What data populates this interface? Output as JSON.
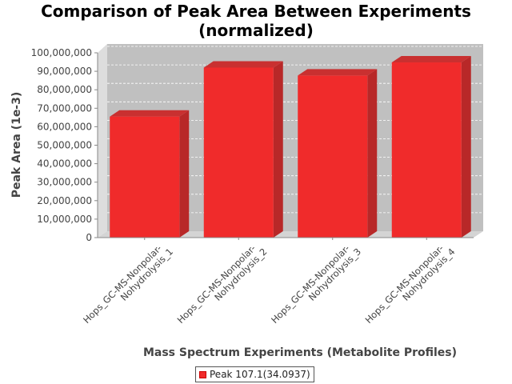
{
  "chart_data": {
    "type": "bar",
    "title_lines": [
      "Comparison of Peak Area Between Experiments",
      "(normalized)"
    ],
    "xlabel": "Mass Spectrum Experiments (Metabolite Profiles)",
    "ylabel": "Peak Area (1e-3)",
    "categories": [
      [
        "Hops_GC-MS-Nonpolar-",
        "Nohydrolysis_1"
      ],
      [
        "Hops_GC-MS-Nonpolar-",
        "Nohydrolysis_2"
      ],
      [
        "Hops_GC-MS-Nonpolar-",
        "Nohydrolysis_3"
      ],
      [
        "Hops_GC-MS-Nonpolar-",
        "Nohydrolysis_4"
      ]
    ],
    "series": [
      {
        "name": "Peak 107.1(34.0937)",
        "values": [
          65500000,
          92000000,
          87700000,
          94800000
        ],
        "color": "#f02b2b"
      }
    ],
    "ylim": [
      0,
      100000000
    ],
    "yticks": [
      {
        "value": 0,
        "label": "0"
      },
      {
        "value": 10000000,
        "label": "10,000,000"
      },
      {
        "value": 20000000,
        "label": "20,000,000"
      },
      {
        "value": 30000000,
        "label": "30,000,000"
      },
      {
        "value": 40000000,
        "label": "40,000,000"
      },
      {
        "value": 50000000,
        "label": "50,000,000"
      },
      {
        "value": 60000000,
        "label": "60,000,000"
      },
      {
        "value": 70000000,
        "label": "70,000,000"
      },
      {
        "value": 80000000,
        "label": "80,000,000"
      },
      {
        "value": 90000000,
        "label": "90,000,000"
      },
      {
        "value": 100000000,
        "label": "100,000,000"
      }
    ],
    "grid": true,
    "legend": "bottom-center",
    "legend_label": "Peak 107.1(34.0937)"
  }
}
